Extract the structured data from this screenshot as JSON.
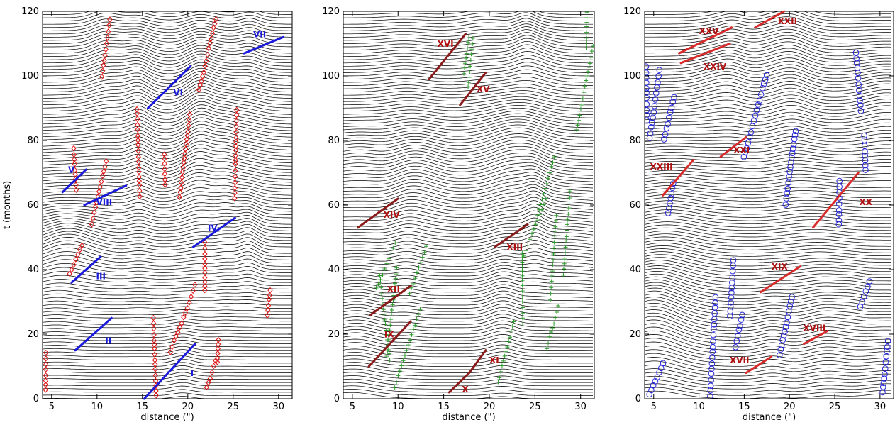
{
  "chart_data": [
    {
      "type": "line",
      "panel": "left",
      "xlabel": "distance (\")",
      "ylabel": "t (months)",
      "xlim": [
        4,
        31.5
      ],
      "ylim": [
        0,
        120
      ],
      "xticks": [
        5,
        10,
        15,
        20,
        25,
        30
      ],
      "yticks": [
        0,
        20,
        40,
        60,
        80,
        100,
        120
      ],
      "marker": "diamond",
      "marker_color": "#e01010",
      "line_color": "#1a1adc",
      "annotation_color": "#1a1adc",
      "segments": [
        {
          "label": "I",
          "x": [
            15.2,
            20.8
          ],
          "y": [
            0,
            17
          ],
          "label_at": [
            20.3,
            7
          ]
        },
        {
          "label": "II",
          "x": [
            7.6,
            11.6
          ],
          "y": [
            15,
            25
          ],
          "label_at": [
            10.9,
            17
          ]
        },
        {
          "label": "III",
          "x": [
            7.2,
            10.4
          ],
          "y": [
            36,
            44
          ],
          "label_at": [
            9.9,
            37
          ]
        },
        {
          "label": "IV",
          "x": [
            20.6,
            25.2
          ],
          "y": [
            47,
            56
          ],
          "label_at": [
            22.2,
            52
          ]
        },
        {
          "label": "V",
          "x": [
            6.2,
            8.8
          ],
          "y": [
            64,
            71
          ],
          "label_at": [
            6.8,
            70
          ]
        },
        {
          "label": "VI",
          "x": [
            15.6,
            20.3
          ],
          "y": [
            90,
            103
          ],
          "label_at": [
            18.4,
            94
          ]
        },
        {
          "label": "VII",
          "x": [
            26.2,
            30.5
          ],
          "y": [
            107,
            112
          ],
          "label_at": [
            27.2,
            112
          ]
        },
        {
          "label": "VIII",
          "x": [
            8.6,
            13.2
          ],
          "y": [
            60,
            66
          ],
          "label_at": [
            9.9,
            60
          ]
        }
      ]
    },
    {
      "type": "line",
      "panel": "middle",
      "xlabel": "distance (\")",
      "ylabel": "",
      "xlim": [
        4,
        31.5
      ],
      "ylim": [
        0,
        120
      ],
      "xticks": [
        5,
        10,
        15,
        20,
        25,
        30
      ],
      "yticks": [
        0,
        20,
        40,
        60,
        80,
        100,
        120
      ],
      "marker": "plus",
      "marker_color": "#2a9a2a",
      "line_color": "#8b1a1a",
      "annotation_color": "#b01010",
      "segments": [
        {
          "label": "IX",
          "x": [
            6.8,
            11.4
          ],
          "y": [
            10,
            24
          ],
          "label_at": [
            8.5,
            19
          ]
        },
        {
          "label": "X",
          "x": [
            15.6,
            17.8
          ],
          "y": [
            2,
            8
          ],
          "label_at": [
            17.0,
            2
          ]
        },
        {
          "label": "XI",
          "x": [
            17.8,
            19.6
          ],
          "y": [
            8,
            15
          ],
          "label_at": [
            20.0,
            11
          ]
        },
        {
          "label": "XII",
          "x": [
            7.0,
            11.4
          ],
          "y": [
            26,
            35
          ],
          "label_at": [
            8.8,
            33
          ]
        },
        {
          "label": "XIII",
          "x": [
            20.6,
            24.2
          ],
          "y": [
            47,
            54
          ],
          "label_at": [
            21.9,
            46
          ]
        },
        {
          "label": "XIV",
          "x": [
            5.6,
            10.0
          ],
          "y": [
            53,
            62
          ],
          "label_at": [
            8.4,
            56
          ]
        },
        {
          "label": "XV",
          "x": [
            16.8,
            19.6
          ],
          "y": [
            91,
            101
          ],
          "label_at": [
            18.6,
            95
          ]
        },
        {
          "label": "XVI",
          "x": [
            13.4,
            17.4
          ],
          "y": [
            99,
            113
          ],
          "label_at": [
            14.3,
            109
          ]
        }
      ]
    },
    {
      "type": "line",
      "panel": "right",
      "xlabel": "distance (\")",
      "ylabel": "",
      "xlim": [
        4,
        31.5
      ],
      "ylim": [
        0,
        120
      ],
      "xticks": [
        5,
        10,
        15,
        20,
        25,
        30
      ],
      "yticks": [
        0,
        20,
        40,
        60,
        80,
        100,
        120
      ],
      "marker": "circle",
      "marker_color": "#2626d8",
      "line_color": "#d82a2a",
      "annotation_color": "#b01010",
      "segments": [
        {
          "label": "XVII",
          "x": [
            15.2,
            18.0
          ],
          "y": [
            8,
            13
          ],
          "label_at": [
            13.4,
            11
          ]
        },
        {
          "label": "XVIII",
          "x": [
            21.6,
            24.2
          ],
          "y": [
            17,
            21
          ],
          "label_at": [
            21.5,
            21
          ]
        },
        {
          "label": "XIX",
          "x": [
            16.8,
            21.2
          ],
          "y": [
            33,
            41
          ],
          "label_at": [
            18.0,
            40
          ]
        },
        {
          "label": "XX",
          "x": [
            22.6,
            27.6
          ],
          "y": [
            53,
            70
          ],
          "label_at": [
            27.7,
            60
          ]
        },
        {
          "label": "XXI",
          "x": [
            12.4,
            15.2
          ],
          "y": [
            75,
            81
          ],
          "label_at": [
            13.8,
            76
          ]
        },
        {
          "label": "XXII",
          "x": [
            16.2,
            19.4
          ],
          "y": [
            115,
            120
          ],
          "label_at": [
            18.7,
            116
          ]
        },
        {
          "label": "XXIII",
          "x": [
            6.0,
            9.4
          ],
          "y": [
            63,
            74
          ],
          "label_at": [
            4.6,
            71
          ]
        },
        {
          "label": "XXIV",
          "x": [
            8.0,
            13.4
          ],
          "y": [
            104,
            110
          ],
          "label_at": [
            10.5,
            102
          ]
        },
        {
          "label": "XXV",
          "x": [
            7.8,
            13.6
          ],
          "y": [
            107,
            115
          ],
          "label_at": [
            10.0,
            113
          ]
        }
      ]
    }
  ]
}
